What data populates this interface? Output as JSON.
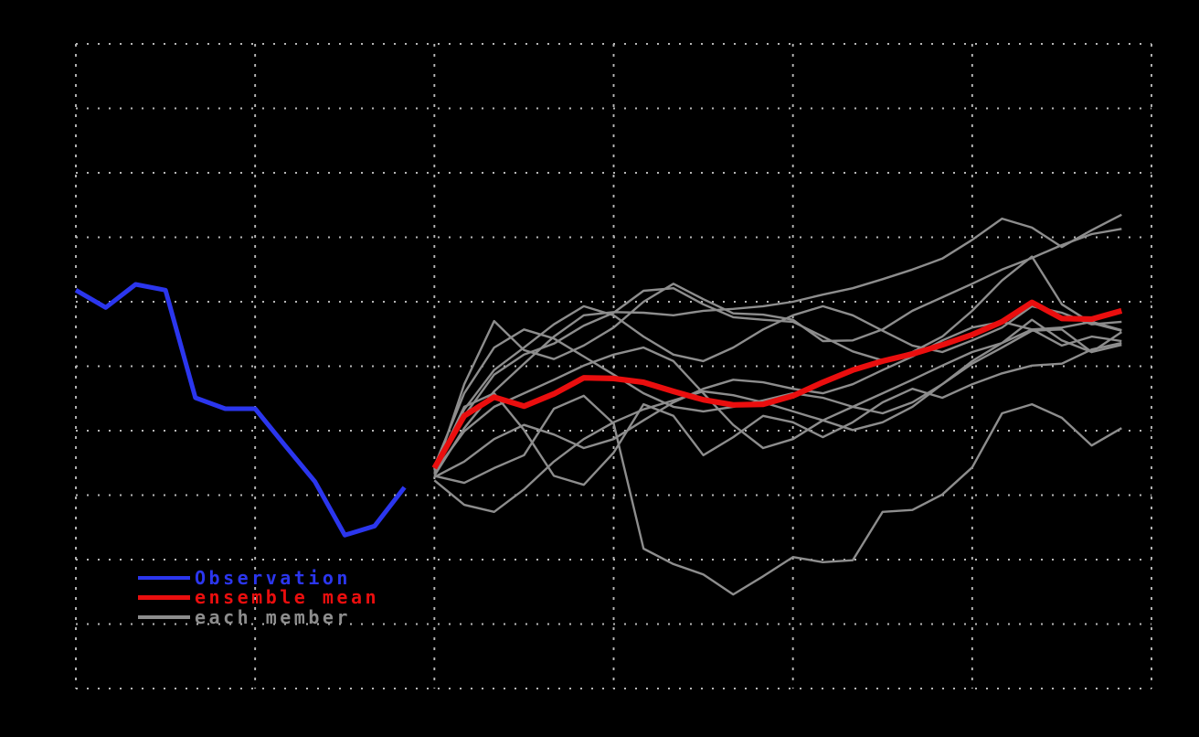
{
  "figure": {
    "background_color": "#000000",
    "title": "",
    "colors": {
      "observation": "#2b36ee",
      "ensemble_mean": "#ea0e0e",
      "member": "#8d8d8d",
      "grid": "#b8b8b8"
    }
  },
  "legend": {
    "items": [
      {
        "label": "Observation",
        "color": "#2b36ee"
      },
      {
        "label": "ensemble mean",
        "color": "#ea0e0e"
      },
      {
        "label": "each member",
        "color": "#8d8d8d"
      }
    ]
  },
  "chart_data": {
    "type": "line",
    "title": "",
    "xlabel": "",
    "ylabel": "",
    "legend_position": "inside lower-left",
    "grid": {
      "visible": true,
      "style": "dotted"
    },
    "axes": {
      "x": {
        "total_steps": 36,
        "gridline_every_steps": 6,
        "tick_labels_visible": false
      },
      "y": {
        "units_top": 5,
        "units_bottom": -5,
        "gridline_every_units": 1,
        "tick_labels_visible": false
      }
    },
    "series": [
      {
        "name": "member 1",
        "role": "ensemble-member",
        "color": "#8d8d8d",
        "line_width": 2.4,
        "start_step": 12,
        "values": [
          -1.67,
          -0.28,
          0.7,
          0.25,
          0.11,
          0.32,
          0.6,
          1.0,
          1.28,
          1.04,
          0.82,
          0.8,
          0.72,
          0.39,
          0.4,
          0.57,
          0.86,
          1.07,
          1.28,
          1.5,
          1.68,
          1.88,
          2.05,
          2.13
        ]
      },
      {
        "name": "member 2",
        "role": "ensemble-member",
        "color": "#8d8d8d",
        "line_width": 2.4,
        "start_step": 12,
        "values": [
          -1.7,
          -0.96,
          -0.39,
          0.04,
          0.46,
          0.79,
          0.84,
          0.83,
          0.79,
          0.86,
          0.89,
          0.93,
          1.0,
          1.11,
          1.21,
          1.35,
          1.5,
          1.67,
          1.96,
          2.29,
          2.15,
          1.85,
          2.11,
          2.35
        ]
      },
      {
        "name": "member 3",
        "role": "ensemble-member",
        "color": "#8d8d8d",
        "line_width": 2.4,
        "start_step": 12,
        "values": [
          -1.62,
          -0.77,
          -0.13,
          0.18,
          0.35,
          0.63,
          0.83,
          1.17,
          1.21,
          0.96,
          0.76,
          0.72,
          0.69,
          0.46,
          0.23,
          0.09,
          0.22,
          0.46,
          0.86,
          1.33,
          1.7,
          0.96,
          0.67,
          0.55
        ]
      },
      {
        "name": "member 4",
        "role": "ensemble-member",
        "color": "#8d8d8d",
        "line_width": 2.4,
        "start_step": 12,
        "values": [
          -1.58,
          -0.67,
          -0.06,
          0.29,
          0.65,
          0.93,
          0.79,
          0.46,
          0.18,
          0.08,
          0.29,
          0.57,
          0.79,
          0.93,
          0.79,
          0.55,
          0.32,
          0.22,
          0.4,
          0.6,
          0.93,
          0.83,
          0.65,
          0.69
        ]
      },
      {
        "name": "member 5",
        "role": "ensemble-member",
        "color": "#8d8d8d",
        "line_width": 2.4,
        "start_step": 12,
        "values": [
          -1.55,
          -0.42,
          0.29,
          0.57,
          0.43,
          0.15,
          -0.13,
          -0.42,
          -0.63,
          -0.7,
          -0.63,
          -0.53,
          -0.42,
          -0.49,
          -0.63,
          -0.73,
          -0.56,
          -0.28,
          0.08,
          0.36,
          0.72,
          0.4,
          0.22,
          0.53
        ]
      },
      {
        "name": "member 6",
        "role": "ensemble-member",
        "color": "#8d8d8d",
        "line_width": 2.4,
        "start_step": 12,
        "values": [
          -1.72,
          -1.48,
          -1.13,
          -0.91,
          -1.06,
          -1.27,
          -1.13,
          -0.84,
          -0.56,
          -0.35,
          -0.21,
          -0.25,
          -0.35,
          -0.42,
          -0.28,
          -0.06,
          0.15,
          0.4,
          0.6,
          0.69,
          0.57,
          0.32,
          0.46,
          0.39
        ]
      },
      {
        "name": "member 7",
        "role": "ensemble-member",
        "color": "#8d8d8d",
        "line_width": 2.4,
        "start_step": 12,
        "values": [
          -1.77,
          -2.15,
          -2.26,
          -1.91,
          -1.48,
          -1.13,
          -0.87,
          -0.67,
          -0.53,
          -0.39,
          -0.45,
          -0.56,
          -0.7,
          -0.84,
          -0.99,
          -0.87,
          -0.63,
          -0.28,
          0.04,
          0.29,
          0.55,
          0.57,
          0.22,
          0.33
        ]
      },
      {
        "name": "member 8",
        "role": "ensemble-member",
        "color": "#8d8d8d",
        "line_width": 2.4,
        "start_step": 12,
        "values": [
          -1.64,
          -1.01,
          -0.63,
          -0.42,
          -0.21,
          0.01,
          0.18,
          0.29,
          0.08,
          -0.42,
          -0.91,
          -1.27,
          -1.13,
          -0.84,
          -0.63,
          -0.42,
          -0.21,
          0.01,
          0.22,
          0.36,
          0.57,
          0.6,
          0.69,
          0.56
        ]
      },
      {
        "name": "member 9",
        "role": "ensemble-member",
        "color": "#8d8d8d",
        "line_width": 2.4,
        "start_step": 12,
        "values": [
          -1.61,
          -0.63,
          -0.42,
          -0.99,
          -1.7,
          -1.84,
          -1.34,
          -0.59,
          -0.77,
          -1.38,
          -1.1,
          -0.77,
          -0.87,
          -1.1,
          -0.87,
          -0.56,
          -0.35,
          -0.49,
          -0.28,
          -0.11,
          0.01,
          0.04,
          0.26,
          0.36
        ]
      },
      {
        "name": "member 10",
        "role": "ensemble-member",
        "color": "#8d8d8d",
        "line_width": 2.4,
        "start_step": 12,
        "values": [
          -1.7,
          -1.81,
          -1.58,
          -1.38,
          -0.66,
          -0.46,
          -0.89,
          -2.83,
          -3.07,
          -3.23,
          -3.54,
          -3.26,
          -2.96,
          -3.04,
          -3.01,
          -2.26,
          -2.23,
          -1.99,
          -1.57,
          -0.73,
          -0.59,
          -0.8,
          -1.23,
          -0.96
        ]
      },
      {
        "name": "Observation",
        "role": "observation",
        "color": "#2b36ee",
        "line_width": 5,
        "start_step": 0,
        "values": [
          1.18,
          0.91,
          1.27,
          1.18,
          -0.49,
          -0.66,
          -0.66,
          -1.23,
          -1.79,
          -2.62,
          -2.48,
          -1.88
        ]
      },
      {
        "name": "ensemble mean",
        "role": "ensemble-mean",
        "color": "#ea0e0e",
        "line_width": 6.2,
        "start_step": 12,
        "values": [
          -1.58,
          -0.77,
          -0.48,
          -0.62,
          -0.43,
          -0.18,
          -0.19,
          -0.25,
          -0.39,
          -0.52,
          -0.6,
          -0.59,
          -0.46,
          -0.25,
          -0.06,
          0.08,
          0.19,
          0.33,
          0.49,
          0.69,
          0.99,
          0.74,
          0.73,
          0.86
        ]
      }
    ]
  }
}
